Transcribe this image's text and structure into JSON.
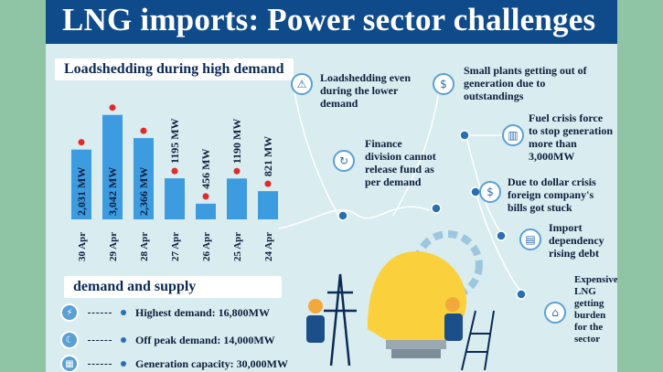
{
  "title": "LNG imports: Power sector challenges",
  "loadshedding": {
    "heading": "Loadshedding during high demand"
  },
  "chart_data": {
    "type": "bar",
    "categories": [
      "30 Apr",
      "29 Apr",
      "28 Apr",
      "27 Apr",
      "26 Apr",
      "25 Apr",
      "24 Apr"
    ],
    "values": [
      2031,
      3042,
      2366,
      1195,
      456,
      1190,
      821
    ],
    "labels": [
      "2,031 MW",
      "3,042 MW",
      "2,366 MW",
      "1195 MW",
      "456 MW",
      "1190 MW",
      "821 MW"
    ],
    "ylim": [
      0,
      3300
    ],
    "bar_color": "#3d9be0",
    "marker_color": "#e02b2b"
  },
  "supply": {
    "heading": "demand and supply",
    "items": [
      {
        "icon": "plug-icon",
        "text": "Highest demand: 16,800MW"
      },
      {
        "icon": "moon-icon",
        "text": "Off peak demand: 14,000MW"
      },
      {
        "icon": "factory-icon",
        "text": "Generation capacity: 30,000MW"
      }
    ]
  },
  "challenges": [
    {
      "icon": "warning-icon",
      "lines": [
        "Loadshedding even",
        "during the lower",
        "demand"
      ]
    },
    {
      "icon": "money-bag-icon",
      "lines": [
        "Small plants getting out of",
        "generation due to",
        "outstandings"
      ]
    },
    {
      "icon": "finance-icon",
      "lines": [
        "Finance",
        "division cannot",
        "release fund as",
        "per demand"
      ]
    },
    {
      "icon": "fuel-icon",
      "lines": [
        "Fuel crisis force",
        "to stop generation",
        "more than",
        "3,000MW"
      ]
    },
    {
      "icon": "dollar-icon",
      "lines": [
        "Due to dollar crisis",
        "foreign company's",
        "bills got stuck"
      ]
    },
    {
      "icon": "debt-icon",
      "lines": [
        "Import",
        "dependency",
        "rising debt"
      ]
    },
    {
      "icon": "lng-icon",
      "lines": [
        "Expensive",
        "LNG",
        "getting",
        "burden",
        "for the",
        "sector"
      ]
    }
  ],
  "colors": {
    "title_bar": "#0f4a8a",
    "panel": "#d9ecef",
    "accent": "#5aa0d4"
  }
}
